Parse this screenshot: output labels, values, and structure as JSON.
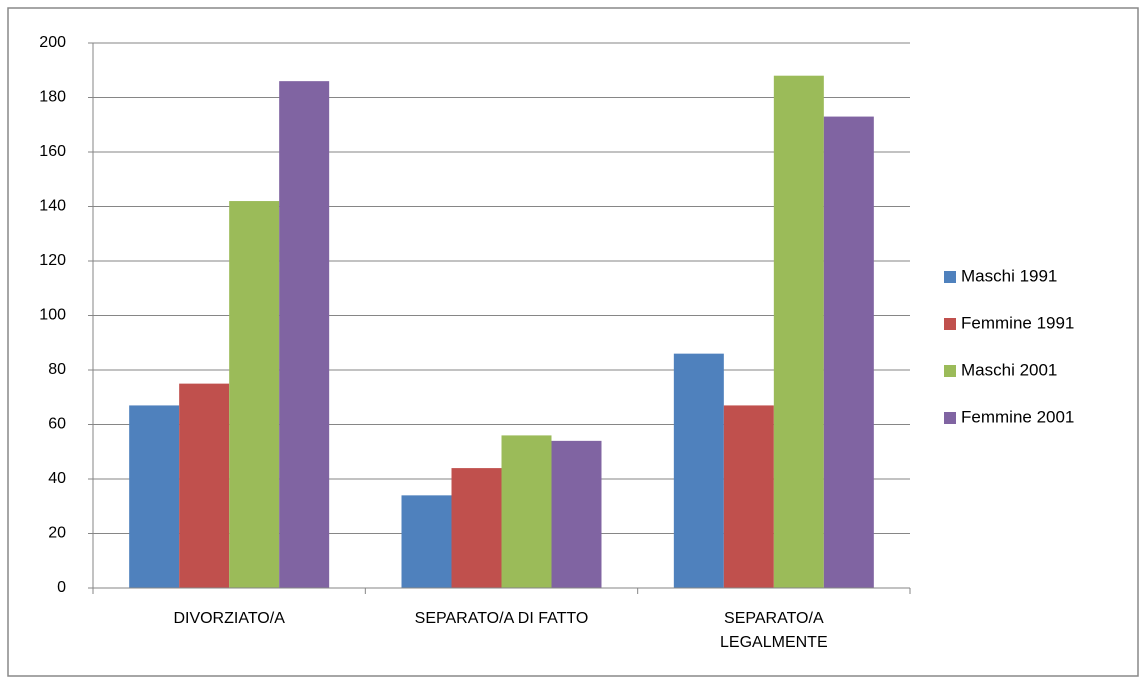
{
  "chart_data": {
    "type": "bar",
    "categories": [
      "DIVORZIATO/A",
      "SEPARATO/A DI FATTO",
      "SEPARATO/A LEGALMENTE"
    ],
    "series": [
      {
        "name": "Maschi 1991",
        "color": "#4f81bd",
        "values": [
          67,
          34,
          86
        ]
      },
      {
        "name": "Femmine 1991",
        "color": "#c0504d",
        "values": [
          75,
          44,
          67
        ]
      },
      {
        "name": "Maschi 2001",
        "color": "#9bbb59",
        "values": [
          142,
          56,
          188
        ]
      },
      {
        "name": "Femmine 2001",
        "color": "#8064a2",
        "values": [
          186,
          54,
          173
        ]
      }
    ],
    "ylim": [
      0,
      200
    ],
    "yticks": [
      0,
      20,
      40,
      60,
      80,
      100,
      120,
      140,
      160,
      180,
      200
    ],
    "grid": true,
    "legend": "right"
  }
}
